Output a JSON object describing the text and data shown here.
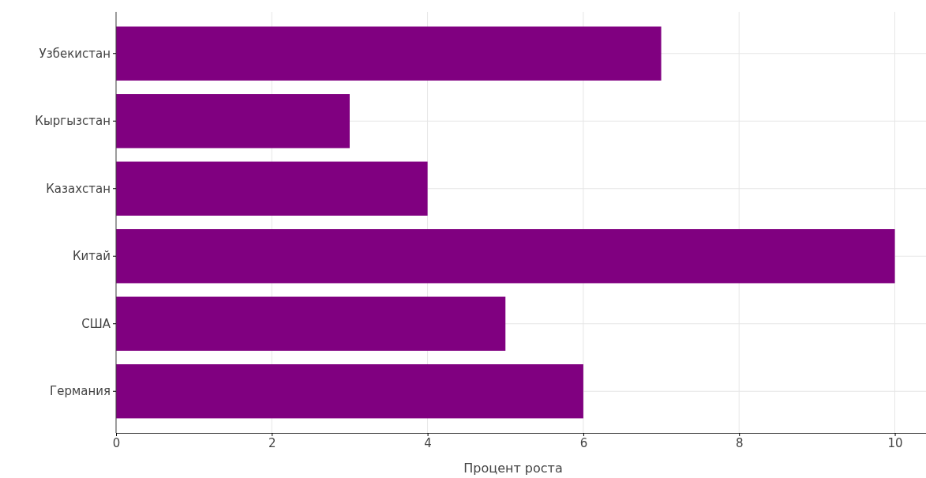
{
  "chart_data": {
    "type": "bar",
    "orientation": "horizontal",
    "categories": [
      "Узбекистан",
      "Кыргызстан",
      "Казахстан",
      "Китай",
      "США",
      "Германия"
    ],
    "values": [
      7,
      3,
      4,
      10,
      5,
      6
    ],
    "color": "#800080",
    "xlabel": "Процент роста",
    "xlim": [
      0,
      10.4
    ],
    "xticks": [
      0,
      2,
      4,
      6,
      8,
      10
    ],
    "grid": true
  }
}
